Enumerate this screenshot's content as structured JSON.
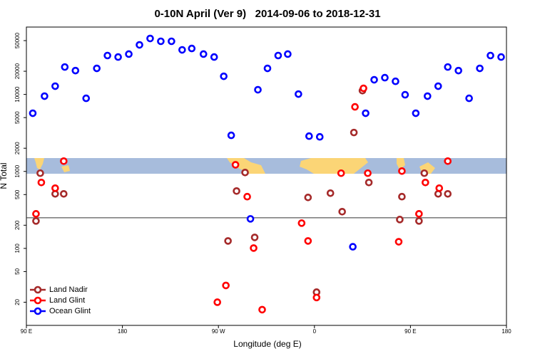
{
  "chart_data": {
    "type": "scatter",
    "title": "0-10N April (Ver 9)   2014-09-06 to 2018-12-31",
    "xlabel": "Longitude (deg E)",
    "ylabel": "N Total",
    "log_y": true,
    "legend": "lower left",
    "xlim": [
      -270,
      180
    ],
    "xticks": [
      {
        "value": -270,
        "label": "90 E"
      },
      {
        "value": -180,
        "label": "180"
      },
      {
        "value": -90,
        "label": "90 W"
      },
      0,
      {
        "value": 90,
        "label": "90 E"
      },
      180
    ],
    "ylim": [
      10,
      75000
    ],
    "yticks": [
      20,
      50,
      100,
      200,
      500,
      1000,
      2000,
      5000,
      10000,
      20000,
      50000
    ],
    "hline": 250,
    "series": [
      {
        "name": "Land Nadir",
        "color": "#a52a2a",
        "x": [
          -261,
          -257,
          -243,
          -235,
          -81,
          -73,
          -65,
          -56,
          -6,
          2,
          15,
          26,
          37,
          45,
          51,
          80,
          82,
          98,
          103,
          116,
          125
        ],
        "values": [
          227,
          948,
          511,
          511,
          125,
          556,
          968,
          139,
          459,
          27,
          522,
          300,
          3200,
          11200,
          718,
          237,
          470,
          227,
          948,
          511,
          511
        ]
      },
      {
        "name": "Land Glint",
        "color": "#ff0000",
        "x": [
          -261,
          -256,
          -243,
          -235,
          -91,
          -83,
          -74,
          -63,
          -57,
          -49,
          -12,
          -6,
          2,
          25,
          38,
          46,
          50,
          79,
          82,
          98,
          104,
          117,
          125
        ],
        "values": [
          281,
          718,
          606,
          1360,
          20,
          33,
          1220,
          470,
          101,
          16,
          213,
          125,
          23,
          948,
          6890,
          12000,
          948,
          122,
          1010,
          281,
          718,
          606,
          1360
        ]
      },
      {
        "name": "Ocean Glint",
        "color": "#0000ff",
        "x": [
          -264,
          -253,
          -243,
          -234,
          -224,
          -214,
          -204,
          -194,
          -184,
          -174,
          -164,
          -154,
          -144,
          -134,
          -124,
          -115,
          -104,
          -94,
          -85,
          -78,
          -60,
          -53,
          -44,
          -34,
          -25,
          -15,
          -5,
          5,
          36,
          48,
          56,
          66,
          76,
          85,
          95,
          106,
          116,
          125,
          135,
          145,
          155,
          165,
          175
        ],
        "values": [
          5700,
          9500,
          12800,
          22700,
          20400,
          8900,
          21800,
          32000,
          30600,
          33400,
          44000,
          53300,
          49000,
          49000,
          37900,
          39500,
          33400,
          30600,
          17200,
          2940,
          242,
          11500,
          21800,
          32000,
          33400,
          10100,
          2870,
          2810,
          105,
          5700,
          15500,
          16500,
          14800,
          9900,
          5700,
          9500,
          12800,
          22700,
          20400,
          8900,
          21800,
          32000,
          30600
        ]
      }
    ]
  }
}
